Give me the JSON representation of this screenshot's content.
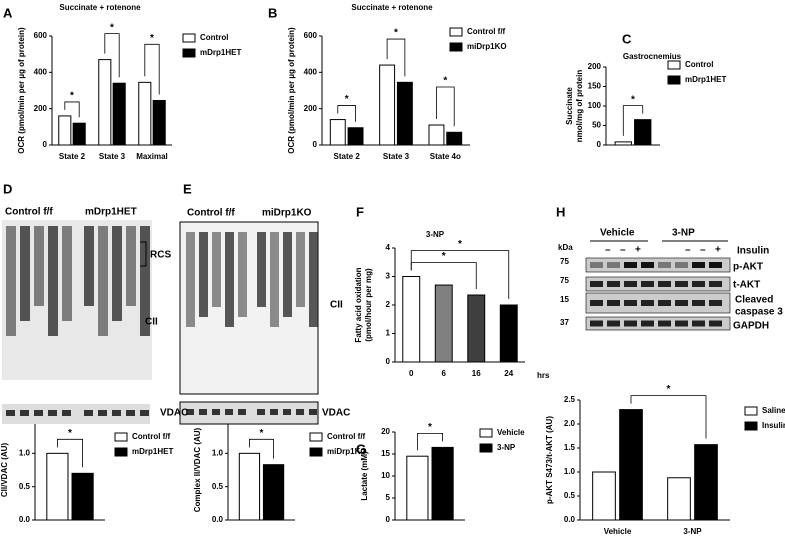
{
  "chart_data": [
    {
      "type": "bar",
      "panel": "A",
      "title": "Succinate + rotenone",
      "ylabel": [
        "OCR (pmol/min per µg of protein)"
      ],
      "categories": [
        "State 2",
        "State 3",
        "Maximal"
      ],
      "series": [
        {
          "name": "Control",
          "color": "#ffffff",
          "values": [
            160,
            470,
            345
          ]
        },
        {
          "name": "mDrp1HET",
          "color": "#000000",
          "values": [
            120,
            340,
            245
          ]
        }
      ],
      "ylim": [
        0,
        600
      ],
      "yticks": [
        0,
        200,
        400,
        600
      ],
      "annotations": [
        "*",
        "*",
        "*"
      ]
    },
    {
      "type": "bar",
      "panel": "B",
      "title": "Succinate + rotenone",
      "ylabel": [
        "OCR (pmol/min per µg of protein)"
      ],
      "categories": [
        "State 2",
        "State 3",
        "State 4o"
      ],
      "series": [
        {
          "name": "Control f/f",
          "color": "#ffffff",
          "values": [
            140,
            440,
            110
          ]
        },
        {
          "name": "miDrp1KO",
          "color": "#000000",
          "values": [
            95,
            345,
            70
          ]
        }
      ],
      "ylim": [
        0,
        600
      ],
      "yticks": [
        0,
        200,
        400,
        600
      ],
      "annotations": [
        "*",
        "*",
        "*"
      ]
    },
    {
      "type": "bar",
      "panel": "C",
      "title": "Gastrocnemius",
      "ylabel": [
        "Succinate",
        "nmol/mg of protein"
      ],
      "categories": [
        null
      ],
      "series": [
        {
          "name": "Control",
          "color": "#ffffff",
          "values": [
            8
          ]
        },
        {
          "name": "mDrp1HET",
          "color": "#000000",
          "values": [
            65
          ]
        }
      ],
      "ylim": [
        0,
        200
      ],
      "yticks": [
        0,
        50,
        100,
        150,
        200
      ],
      "annotations": [
        "*"
      ]
    },
    {
      "type": "bar",
      "ylabel": [
        "CII/VDAC (AU)"
      ],
      "categories": [
        null
      ],
      "series": [
        {
          "name": "Control f/f",
          "color": "#ffffff",
          "values": [
            1.0
          ]
        },
        {
          "name": "mDrp1HET",
          "color": "#000000",
          "values": [
            0.7
          ]
        }
      ],
      "ylim": [
        0,
        1.5
      ],
      "yticks": [
        {
          "value": 0,
          "label": "0.0"
        },
        0.5,
        {
          "value": 1,
          "label": "1.0"
        },
        1.5
      ],
      "annotations": [
        "*"
      ]
    },
    {
      "type": "bar",
      "ylabel": [
        "Complex II/VDAC (AU)"
      ],
      "categories": [
        null
      ],
      "series": [
        {
          "name": "Control f/f",
          "color": "#ffffff",
          "values": [
            1.0
          ]
        },
        {
          "name": "miDrp1KO",
          "color": "#000000",
          "values": [
            0.83
          ]
        }
      ],
      "ylim": [
        0,
        1.5
      ],
      "yticks": [
        {
          "value": 0,
          "label": "0.0"
        },
        0.5,
        {
          "value": 1,
          "label": "1.0"
        },
        1.5
      ],
      "annotations": [
        "*"
      ]
    },
    {
      "type": "bar",
      "panel": "F",
      "title": "3-NP",
      "ylabel": [
        "Fatty acid oxidation",
        "(pmol/hour per mg)"
      ],
      "xlabel": "hrs",
      "categories": [
        "0",
        "6",
        "16",
        "24"
      ],
      "series": [
        {
          "colors": [
            "#ffffff",
            "#808080",
            "#404040",
            "#000000"
          ],
          "values": [
            3.0,
            2.7,
            2.35,
            2.0
          ]
        }
      ],
      "ylim": [
        0,
        4
      ],
      "yticks": [
        0,
        1,
        2,
        3,
        4
      ],
      "annotations": [
        "*",
        "*"
      ]
    },
    {
      "type": "bar",
      "panel": "G",
      "ylabel": [
        "Lactate (mM)"
      ],
      "categories": [
        null
      ],
      "series": [
        {
          "name": "Vehicle",
          "color": "#ffffff",
          "values": [
            14.5
          ]
        },
        {
          "name": "3-NP",
          "color": "#000000",
          "values": [
            16.5
          ]
        }
      ],
      "ylim": [
        0,
        20
      ],
      "yticks": [
        0,
        5,
        10,
        15,
        20
      ],
      "annotations": [
        "*"
      ]
    },
    {
      "type": "bar",
      "ylabel": [
        "p-AKT S473/t-AKT (AU)"
      ],
      "categories": [
        "Vehicle",
        "3-NP"
      ],
      "series": [
        {
          "name": "Saline",
          "color": "#ffffff",
          "values": [
            1.0,
            0.88
          ]
        },
        {
          "name": "Insulin",
          "color": "#000000",
          "values": [
            2.3,
            1.57
          ]
        }
      ],
      "ylim": [
        0,
        2.5
      ],
      "yticks": [
        {
          "value": 0,
          "label": "0.0"
        },
        0.5,
        {
          "value": 1,
          "label": "1.0"
        },
        1.5,
        {
          "value": 2,
          "label": "2.0"
        },
        2.5
      ],
      "annotations": [
        "*"
      ]
    }
  ],
  "blots": [
    {
      "panel": "D",
      "labels": [
        "Control f/f",
        "mDrp1HET",
        "RCS",
        "CII",
        "VDAC"
      ]
    },
    {
      "panel": "E",
      "labels": [
        "Control f/f",
        "miDrp1KO",
        "CII",
        "VDAC"
      ]
    },
    {
      "panel": "H",
      "labels": [
        "Vehicle",
        "3-NP",
        "Insulin",
        "kDa",
        "–",
        "–",
        "+",
        "–",
        "–",
        "+",
        "75",
        "p-AKT",
        "75",
        "t-AKT",
        "15",
        "Cleaved",
        "caspase 3",
        "37",
        "GAPDH"
      ]
    }
  ]
}
